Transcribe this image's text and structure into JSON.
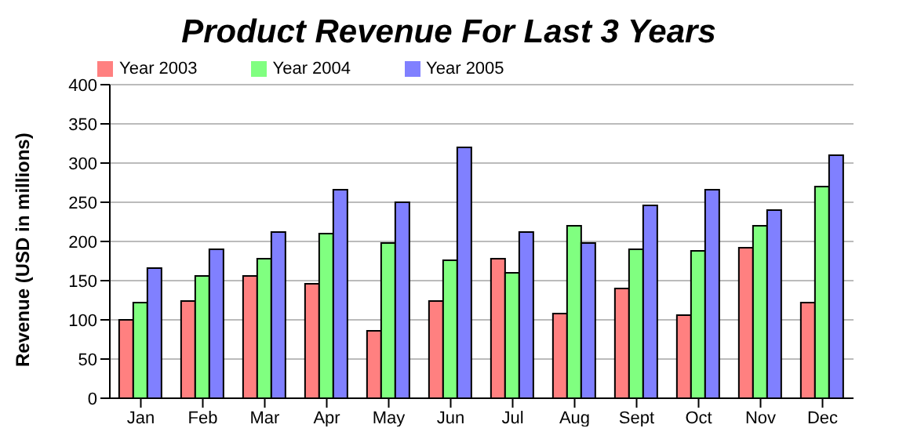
{
  "chart_data": {
    "type": "bar",
    "title": "Product Revenue For Last 3 Years",
    "ylabel": "Revenue (USD in millions)",
    "categories": [
      "Jan",
      "Feb",
      "Mar",
      "Apr",
      "May",
      "Jun",
      "Jul",
      "Aug",
      "Sept",
      "Oct",
      "Nov",
      "Dec"
    ],
    "series": [
      {
        "name": "Year 2003",
        "color": "#ff8080",
        "values": [
          100,
          124,
          156,
          146,
          86,
          124,
          178,
          108,
          140,
          106,
          192,
          122
        ]
      },
      {
        "name": "Year 2004",
        "color": "#80ff80",
        "values": [
          122,
          156,
          178,
          210,
          198,
          176,
          160,
          220,
          190,
          188,
          220,
          270
        ]
      },
      {
        "name": "Year 2005",
        "color": "#8080ff",
        "values": [
          166,
          190,
          212,
          266,
          250,
          320,
          212,
          198,
          246,
          266,
          240,
          310
        ]
      }
    ],
    "ylim": [
      0,
      400
    ],
    "yticks": [
      0,
      50,
      100,
      150,
      200,
      250,
      300,
      350,
      400
    ],
    "grid": "y",
    "legend": "top left"
  }
}
